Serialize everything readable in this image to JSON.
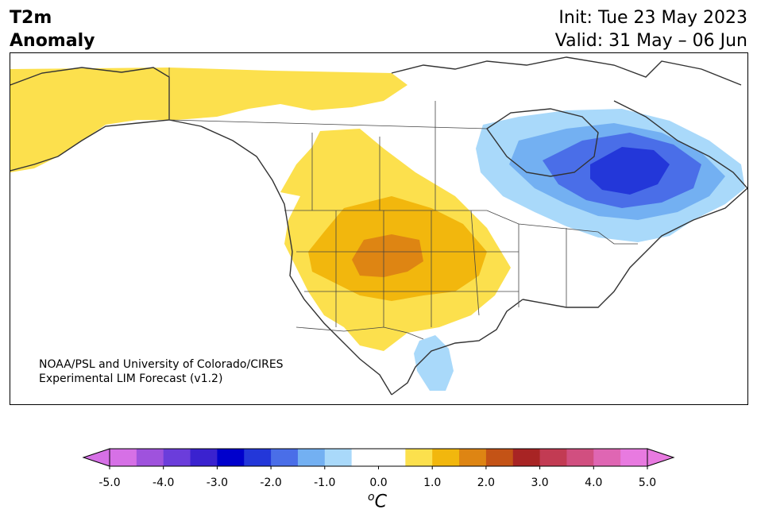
{
  "header": {
    "variable": "T2m",
    "subtitle": "Anomaly",
    "init": "Init: Tue 23 May 2023",
    "valid": "Valid: 31 May – 06 Jun"
  },
  "credit": {
    "line1": "NOAA/PSL and University of Colorado/CIRES",
    "line2": "Experimental LIM Forecast (v1.2)"
  },
  "colorbar": {
    "unit_prefix": "o",
    "unit": "C",
    "colors": [
      "#d670e6",
      "#9f52dd",
      "#6b3ddb",
      "#3a22cf",
      "#0000cc",
      "#2337d9",
      "#4a6ee8",
      "#73b0f2",
      "#a9d9fa",
      "#ffffff",
      "#ffffff",
      "#fce04d",
      "#f2b70d",
      "#de8513",
      "#c45316",
      "#a82424",
      "#c23b53",
      "#d14f80",
      "#df66b3",
      "#e87ae0"
    ],
    "tick_labels": [
      "-5.0",
      "-4.0",
      "-3.0",
      "-2.0",
      "-1.0",
      "0.0",
      "1.0",
      "2.0",
      "3.0",
      "4.0",
      "5.0"
    ],
    "extend_low": "#d670e6",
    "extend_high": "#e87ae0"
  },
  "anomaly_regions": [
    {
      "label": "warm-west-1",
      "level": "0.5 to 1.0",
      "color": "#fce04d"
    },
    {
      "label": "warm-west-2",
      "level": "1.0 to 1.5",
      "color": "#f2b70d"
    },
    {
      "label": "warm-west-3",
      "level": "1.5 to 2.0",
      "color": "#de8513"
    },
    {
      "label": "cold-east-1",
      "level": "-0.5 to -1.0",
      "color": "#a9d9fa"
    },
    {
      "label": "cold-east-2",
      "level": "-1.0 to -1.5",
      "color": "#73b0f2"
    },
    {
      "label": "cold-east-3",
      "level": "-1.5 to -2.0",
      "color": "#4a6ee8"
    },
    {
      "label": "cold-east-4",
      "level": "-2.0 to -2.5",
      "color": "#2337d9"
    }
  ]
}
